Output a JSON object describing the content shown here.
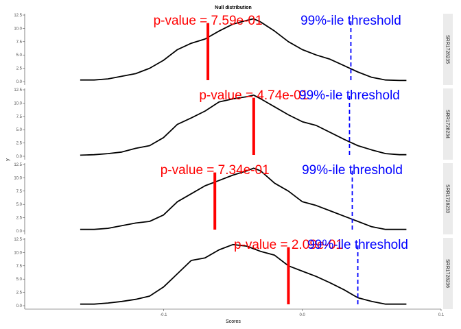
{
  "chart_data": {
    "type": "line",
    "title": "Null distribution",
    "xlabel": "Scores",
    "ylabel": "y",
    "xlim": [
      -0.2,
      0.1
    ],
    "ylim": [
      0,
      12.5
    ],
    "x_ticks": [
      -0.1,
      0.0,
      0.1
    ],
    "x_tick_labels": [
      "-0.1",
      "0.0",
      "0.1"
    ],
    "y_ticks": [
      0,
      2.5,
      5,
      7.5,
      10,
      12.5
    ],
    "y_tick_labels": [
      "0.0",
      "2.5",
      "5.0",
      "7.5",
      "10.0",
      "12.5"
    ],
    "panels": [
      {
        "strip": "SRR1728235",
        "pvalue_label": "p-value = 7.59e-01",
        "threshold_label": "99%-ile threshold",
        "observed_score": -0.068,
        "threshold_score": 0.035,
        "x": [
          -0.16,
          -0.15,
          -0.14,
          -0.13,
          -0.12,
          -0.11,
          -0.1,
          -0.09,
          -0.08,
          -0.07,
          -0.06,
          -0.05,
          -0.04,
          -0.035,
          -0.03,
          -0.02,
          -0.01,
          0,
          0.01,
          0.02,
          0.03,
          0.04,
          0.05,
          0.06,
          0.07,
          0.075
        ],
        "y": [
          0.3,
          0.3,
          0.5,
          1.0,
          1.5,
          2.5,
          4.0,
          6.0,
          7.2,
          8.0,
          9.5,
          10.8,
          11.5,
          11.8,
          11.2,
          9.5,
          7.5,
          6.0,
          5.0,
          4.2,
          3.0,
          1.8,
          0.8,
          0.3,
          0.2,
          0.2
        ]
      },
      {
        "strip": "SRR1728234",
        "pvalue_label": "p-value = 4.74e-01",
        "threshold_label": "99%-ile threshold",
        "observed_score": -0.035,
        "threshold_score": 0.034,
        "x": [
          -0.16,
          -0.15,
          -0.14,
          -0.13,
          -0.12,
          -0.11,
          -0.1,
          -0.09,
          -0.08,
          -0.07,
          -0.06,
          -0.05,
          -0.04,
          -0.035,
          -0.03,
          -0.02,
          -0.01,
          0,
          0.01,
          0.02,
          0.03,
          0.04,
          0.05,
          0.06,
          0.07,
          0.075
        ],
        "y": [
          0.2,
          0.3,
          0.5,
          0.8,
          1.5,
          2.0,
          3.5,
          6.0,
          7.2,
          8.5,
          10.2,
          10.8,
          11.2,
          11.5,
          10.8,
          9.3,
          7.8,
          6.5,
          5.8,
          4.5,
          3.2,
          2.0,
          1.2,
          0.5,
          0.3,
          0.3
        ]
      },
      {
        "strip": "SRR1728233",
        "pvalue_label": "p-value = 7.34e-01",
        "threshold_label": "99%-ile threshold",
        "observed_score": -0.063,
        "threshold_score": 0.036,
        "x": [
          -0.16,
          -0.15,
          -0.14,
          -0.13,
          -0.12,
          -0.11,
          -0.1,
          -0.09,
          -0.08,
          -0.07,
          -0.06,
          -0.05,
          -0.04,
          -0.035,
          -0.03,
          -0.02,
          -0.01,
          0,
          0.01,
          0.02,
          0.03,
          0.04,
          0.05,
          0.06,
          0.07,
          0.075
        ],
        "y": [
          0.3,
          0.3,
          0.5,
          1.0,
          1.5,
          1.8,
          3.0,
          5.5,
          7.0,
          8.5,
          9.5,
          10.5,
          11.3,
          11.8,
          11.3,
          9.0,
          7.5,
          5.5,
          4.8,
          3.8,
          2.8,
          1.8,
          0.8,
          0.3,
          0.3,
          0.3
        ]
      },
      {
        "strip": "SRR1728236",
        "pvalue_label": "p-value = 2.09e-01",
        "threshold_label": "99%-ile threshold",
        "observed_score": -0.01,
        "threshold_score": 0.04,
        "x": [
          -0.16,
          -0.15,
          -0.14,
          -0.13,
          -0.12,
          -0.11,
          -0.1,
          -0.09,
          -0.08,
          -0.07,
          -0.06,
          -0.05,
          -0.04,
          -0.03,
          -0.02,
          -0.01,
          0,
          0.01,
          0.02,
          0.03,
          0.04,
          0.05,
          0.06,
          0.07,
          0.075
        ],
        "y": [
          0.3,
          0.3,
          0.5,
          0.8,
          1.2,
          1.8,
          3.5,
          6.0,
          8.5,
          9.0,
          10.5,
          11.5,
          11.2,
          10.2,
          9.5,
          7.5,
          6.5,
          5.5,
          4.3,
          3.0,
          1.5,
          0.8,
          0.3,
          0.3,
          0.3
        ]
      }
    ]
  }
}
